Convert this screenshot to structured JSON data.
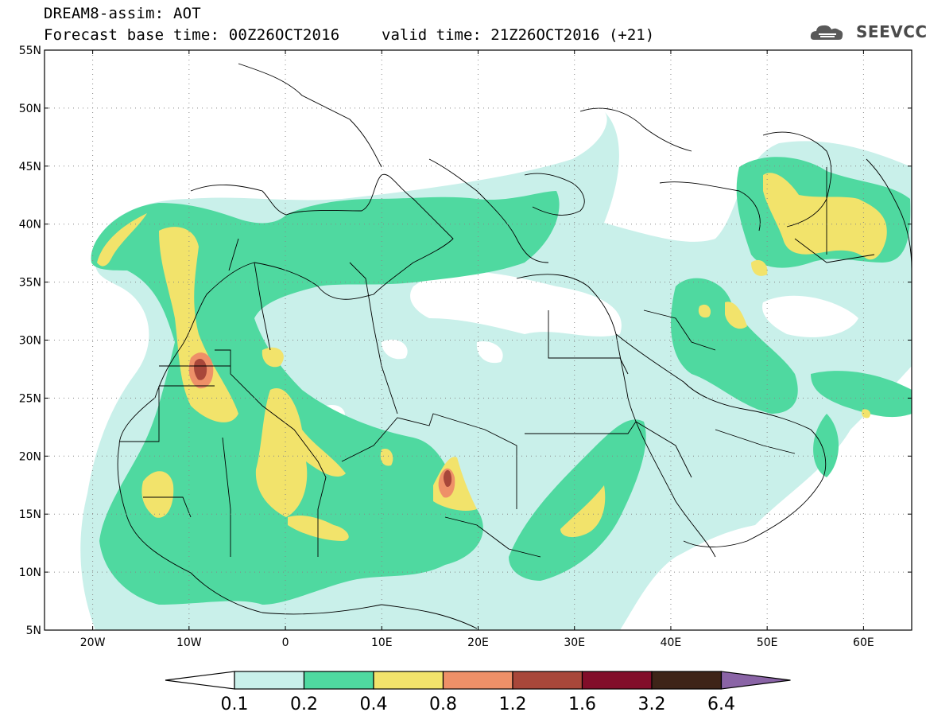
{
  "title": {
    "line1": "DREAM8-assim: AOT",
    "line2": "Forecast base time: 00Z26OCT2016",
    "valid": "valid time: 21Z26OCT2016 (+21)"
  },
  "logo": {
    "text": "SEEVCCC",
    "icon": "cloud-icon"
  },
  "map": {
    "lon_range": [
      -25,
      65
    ],
    "lat_range": [
      5,
      55
    ],
    "lat_ticks": [
      {
        "value": 55,
        "label": "55N"
      },
      {
        "value": 50,
        "label": "50N"
      },
      {
        "value": 45,
        "label": "45N"
      },
      {
        "value": 40,
        "label": "40N"
      },
      {
        "value": 35,
        "label": "35N"
      },
      {
        "value": 30,
        "label": "30N"
      },
      {
        "value": 25,
        "label": "25N"
      },
      {
        "value": 20,
        "label": "20N"
      },
      {
        "value": 15,
        "label": "15N"
      },
      {
        "value": 10,
        "label": "10N"
      },
      {
        "value": 5,
        "label": "5N"
      }
    ],
    "lon_ticks": [
      {
        "value": -20,
        "label": "20W"
      },
      {
        "value": -10,
        "label": "10W"
      },
      {
        "value": 0,
        "label": "0"
      },
      {
        "value": 10,
        "label": "10E"
      },
      {
        "value": 20,
        "label": "20E"
      },
      {
        "value": 30,
        "label": "30E"
      },
      {
        "value": 40,
        "label": "40E"
      },
      {
        "value": 50,
        "label": "50E"
      },
      {
        "value": 60,
        "label": "60E"
      }
    ],
    "grid": "dotted"
  },
  "colorbar": {
    "levels": [
      "0.1",
      "0.2",
      "0.4",
      "0.8",
      "1.2",
      "1.6",
      "3.2",
      "6.4"
    ],
    "under_color": "#ffffff",
    "colors": [
      "#c9f0ea",
      "#4fd9a0",
      "#f2e36b",
      "#ee9068",
      "#a8473a",
      "#820d2a",
      "#3e2418"
    ],
    "over_color": "#8a64a6"
  }
}
